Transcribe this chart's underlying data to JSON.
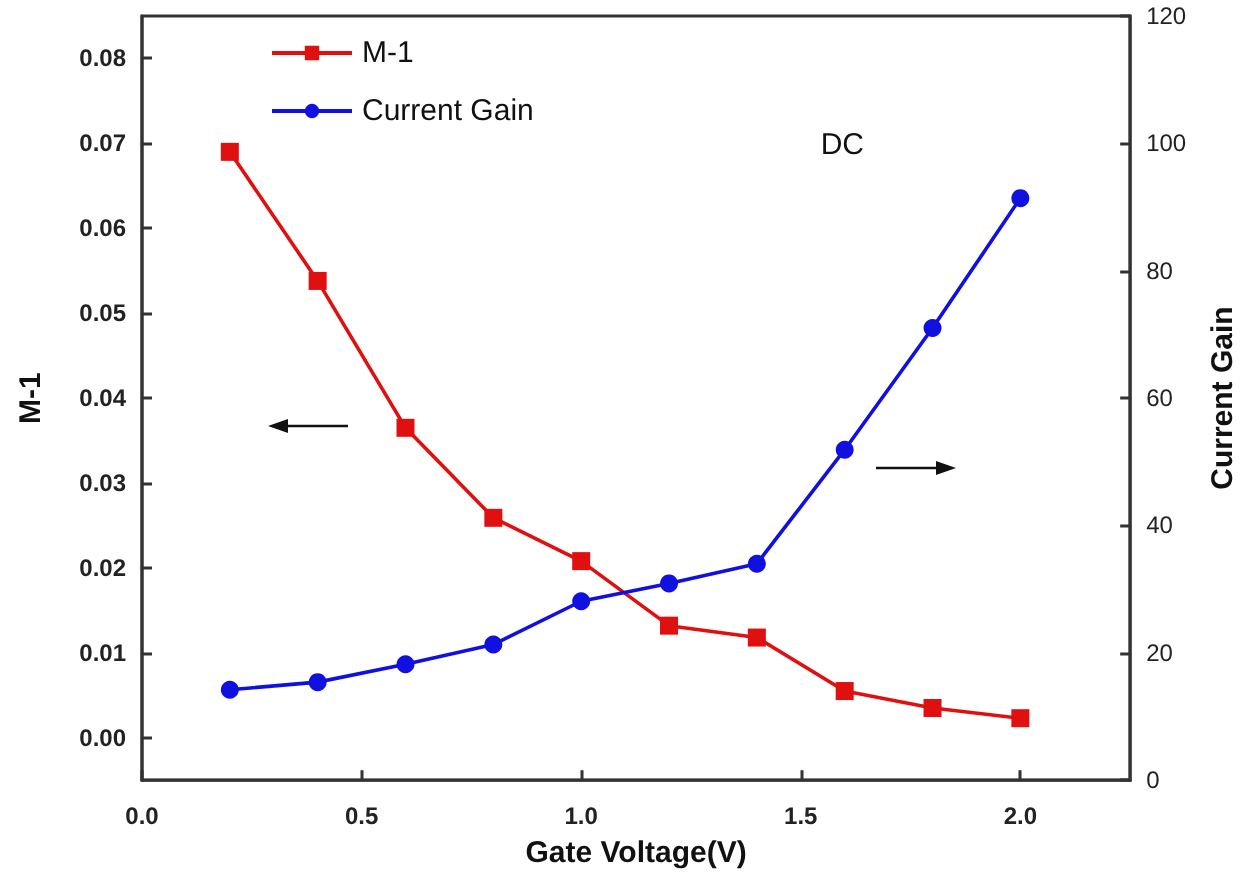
{
  "chart_data": {
    "type": "line",
    "xlabel": "Gate Voltage(V)",
    "ylabel": "M-1",
    "y2label": "Current Gain",
    "annotations": [
      "DC"
    ],
    "x": [
      0.2,
      0.4,
      0.6,
      0.8,
      1.0,
      1.2,
      1.4,
      1.6,
      1.8,
      2.0
    ],
    "series": [
      {
        "name": "M-1",
        "color": "#e01010",
        "marker": "square",
        "values": [
          0.069,
          0.0538,
          0.0365,
          0.0259,
          0.0208,
          0.0132,
          0.0118,
          0.0055,
          0.0035,
          0.0023
        ]
      },
      {
        "name": "Current Gain",
        "color": "#1010e0",
        "marker": "circle",
        "axis": "y2",
        "values": [
          14.2,
          15.4,
          18.2,
          21.3,
          28.1,
          30.9,
          34.0,
          51.9,
          71.0,
          91.4
        ]
      }
    ],
    "xlim": [
      0,
      2.25
    ],
    "xticks": [
      {
        "value": 0,
        "label": "0.0"
      },
      {
        "value": 0.5,
        "label": "0.5"
      },
      {
        "value": 1,
        "label": "1.0"
      },
      {
        "value": 1.5,
        "label": "1.5"
      },
      {
        "value": 2,
        "label": "2.0"
      }
    ],
    "ylim": [
      -0.005,
      0.085
    ],
    "yticks": [
      {
        "value": 0,
        "label": "0.00"
      },
      {
        "value": 0.01,
        "label": "0.01"
      },
      {
        "value": 0.02,
        "label": "0.02"
      },
      {
        "value": 0.03,
        "label": "0.03"
      },
      {
        "value": 0.04,
        "label": "0.04"
      },
      {
        "value": 0.05,
        "label": "0.05"
      },
      {
        "value": 0.06,
        "label": "0.06"
      },
      {
        "value": 0.07,
        "label": "0.07"
      },
      {
        "value": 0.08,
        "label": "0.08"
      }
    ],
    "y2lim": [
      0,
      120
    ],
    "y2ticks": [
      0,
      20,
      40,
      60,
      80,
      100,
      120
    ],
    "legend": "top left",
    "grid": false,
    "line_style": "solid"
  }
}
